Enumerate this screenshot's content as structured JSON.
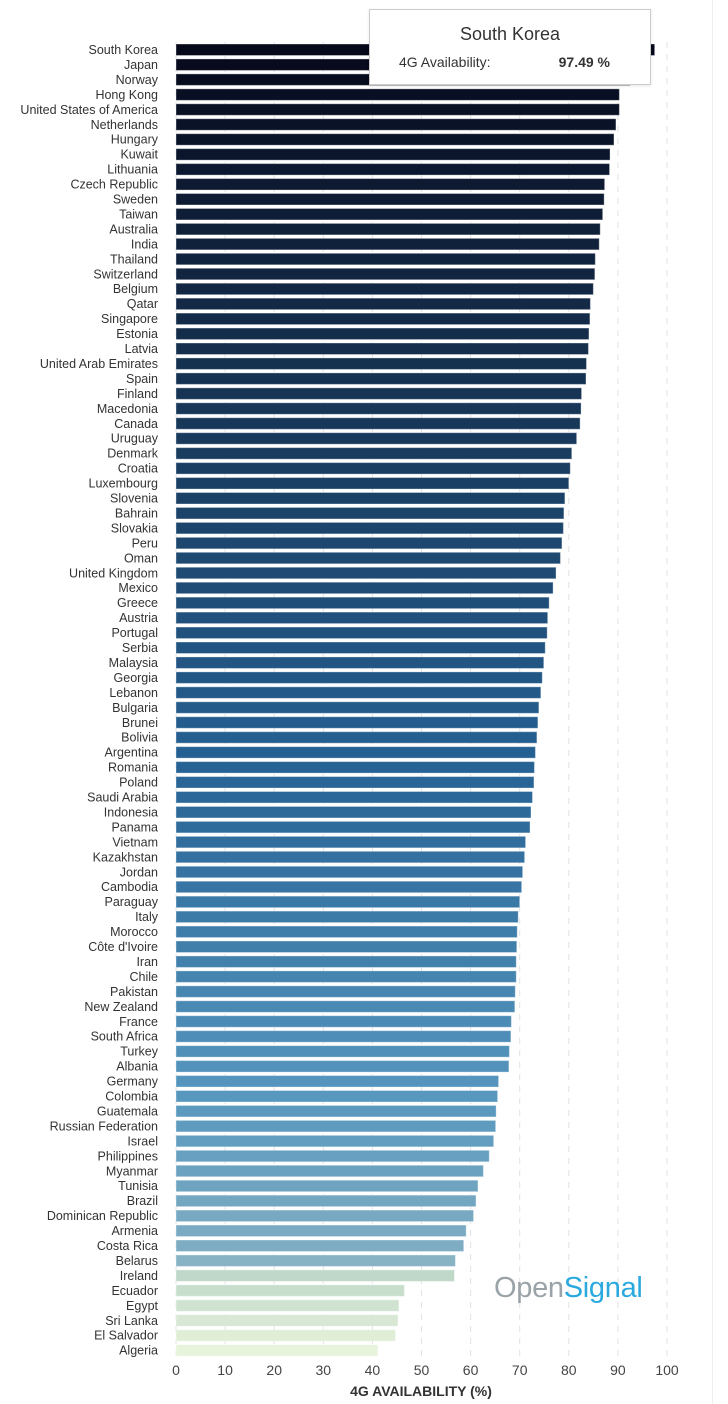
{
  "chart_data": {
    "type": "bar",
    "orientation": "horizontal",
    "title": "",
    "xlabel": "4G AVAILABILITY (%)",
    "ylabel": "",
    "xlim": [
      0,
      100
    ],
    "xticks": [
      "0",
      "10",
      "20",
      "30",
      "40",
      "50",
      "60",
      "70",
      "80",
      "90",
      "100"
    ],
    "grid": true,
    "categories": [
      "South Korea",
      "Japan",
      "Norway",
      "Hong Kong",
      "United States of America",
      "Netherlands",
      "Hungary",
      "Kuwait",
      "Lithuania",
      "Czech Republic",
      "Sweden",
      "Taiwan",
      "Australia",
      "India",
      "Thailand",
      "Switzerland",
      "Belgium",
      "Qatar",
      "Singapore",
      "Estonia",
      "Latvia",
      "United Arab Emirates",
      "Spain",
      "Finland",
      "Macedonia",
      "Canada",
      "Uruguay",
      "Denmark",
      "Croatia",
      "Luxembourg",
      "Slovenia",
      "Bahrain",
      "Slovakia",
      "Peru",
      "Oman",
      "United Kingdom",
      "Mexico",
      "Greece",
      "Austria",
      "Portugal",
      "Serbia",
      "Malaysia",
      "Georgia",
      "Lebanon",
      "Bulgaria",
      "Brunei",
      "Bolivia",
      "Argentina",
      "Romania",
      "Poland",
      "Saudi Arabia",
      "Indonesia",
      "Panama",
      "Vietnam",
      "Kazakhstan",
      "Jordan",
      "Cambodia",
      "Paraguay",
      "Italy",
      "Morocco",
      "Côte d'Ivoire",
      "Iran",
      "Chile",
      "Pakistan",
      "New Zealand",
      "France",
      "South Africa",
      "Turkey",
      "Albania",
      "Germany",
      "Colombia",
      "Guatemala",
      "Russian Federation",
      "Israel",
      "Philippines",
      "Myanmar",
      "Tunisia",
      "Brazil",
      "Dominican Republic",
      "Armenia",
      "Costa Rica",
      "Belarus",
      "Ireland",
      "Ecuador",
      "Egypt",
      "Sri Lanka",
      "El Salvador",
      "Algeria"
    ],
    "values": [
      97.49,
      93.8,
      92.5,
      90.3,
      90.3,
      89.6,
      89.2,
      88.4,
      88.3,
      87.3,
      87.2,
      86.9,
      86.4,
      86.2,
      85.4,
      85.3,
      85.0,
      84.4,
      84.3,
      84.1,
      84.0,
      83.6,
      83.5,
      82.6,
      82.5,
      82.3,
      81.6,
      80.6,
      80.3,
      80.0,
      79.2,
      79.0,
      78.9,
      78.6,
      78.3,
      77.4,
      76.8,
      76.0,
      75.7,
      75.6,
      75.2,
      74.9,
      74.6,
      74.3,
      73.9,
      73.7,
      73.5,
      73.2,
      73.0,
      72.9,
      72.6,
      72.3,
      72.1,
      71.2,
      71.0,
      70.6,
      70.4,
      70.0,
      69.7,
      69.5,
      69.4,
      69.3,
      69.3,
      69.1,
      69.0,
      68.3,
      68.2,
      67.9,
      67.8,
      65.7,
      65.5,
      65.2,
      65.1,
      64.7,
      63.8,
      62.6,
      61.5,
      61.1,
      60.6,
      59.1,
      58.6,
      56.9,
      56.7,
      46.5,
      45.4,
      45.2,
      44.7,
      41.1
    ],
    "legend": null
  },
  "tooltip": {
    "title": "South Korea",
    "key": "4G Availability:",
    "value": "97.49 %"
  },
  "logo": {
    "part1": "Open",
    "part2": "Signal"
  },
  "colors": {
    "dark": "#06091a",
    "mid": "#2f6f9f",
    "light": "#cfe3d6",
    "lightest": "#e6f2dc",
    "logo_gray": "#9aa3a8",
    "logo_blue": "#2ba9df"
  }
}
